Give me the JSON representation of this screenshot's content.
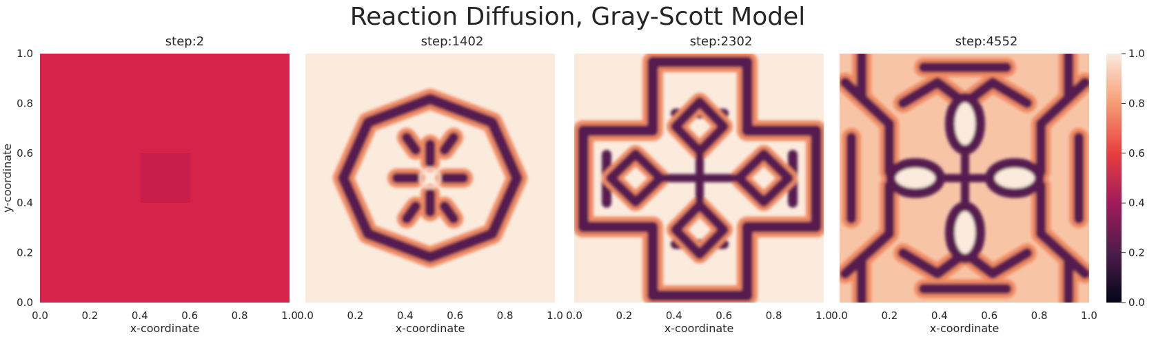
{
  "figure": {
    "title": "Reaction Diffusion, Gray-Scott Model"
  },
  "chart_data": {
    "type": "heatmap",
    "colormap": "rocket",
    "xlabel": "x-coordinate",
    "ylabel": "y-coordinate",
    "xlim": [
      0.0,
      1.0
    ],
    "ylim": [
      0.0,
      1.0
    ],
    "grid": false,
    "x_ticks": [
      "0.0",
      "0.2",
      "0.4",
      "0.6",
      "0.8",
      "1.0"
    ],
    "y_ticks": [
      "0.0",
      "0.2",
      "0.4",
      "0.6",
      "0.8",
      "1.0"
    ],
    "colorbar": {
      "range": [
        0.0,
        1.0
      ],
      "ticks": [
        "0.0",
        "0.2",
        "0.4",
        "0.6",
        "0.8",
        "1.0"
      ]
    },
    "panels": [
      {
        "title": "step:2",
        "step": 2,
        "field_description": "uniform value ~0.5 with centered square patch (x,y in 0.4-0.6) slightly lower"
      },
      {
        "title": "step:1402",
        "step": 1402,
        "field_description": "ring-shaped spot pattern on light background"
      },
      {
        "title": "step:2302",
        "step": 2302,
        "field_description": "cross-shaped labyrinth with diamond loops"
      },
      {
        "title": "step:4552",
        "step": 4552,
        "field_description": "space-filling symmetric stripe/labyrinth pattern"
      }
    ]
  }
}
